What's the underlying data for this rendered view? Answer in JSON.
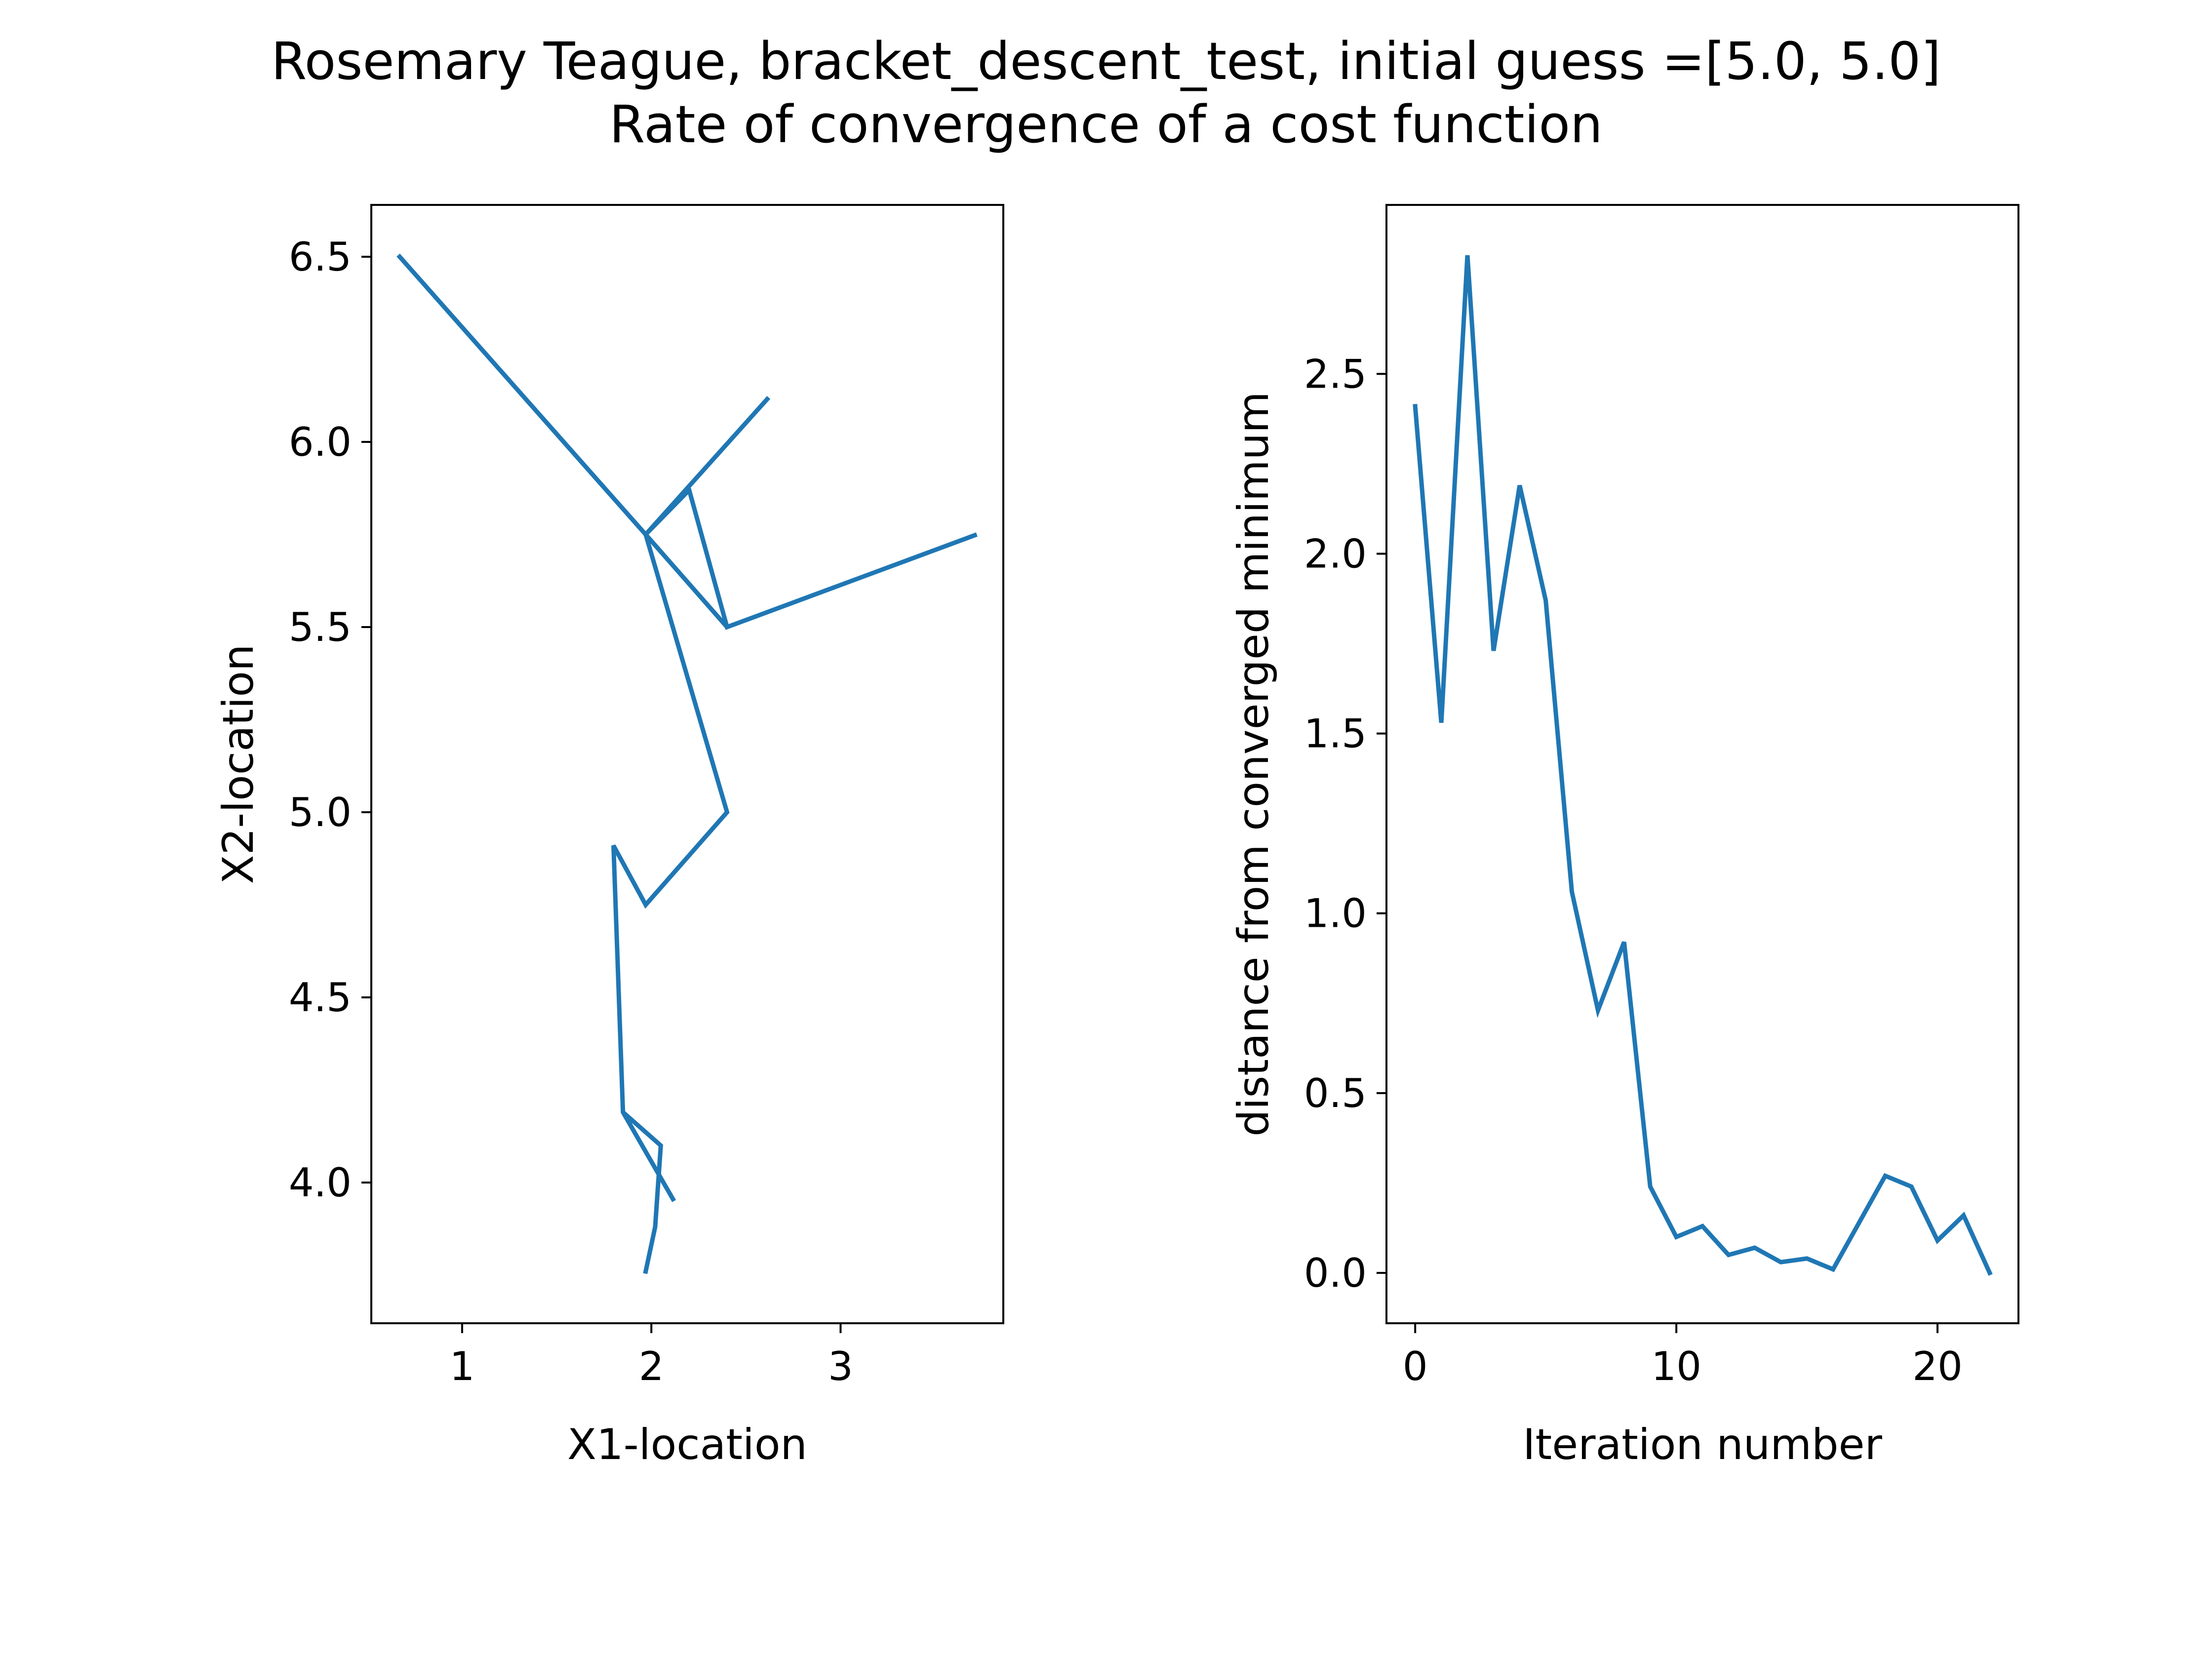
{
  "figure": {
    "title_line1": "Rosemary Teague, bracket_descent_test, initial guess =[5.0, 5.0]",
    "title_line2": "Rate of convergence of a cost function",
    "line_color": "#1f77b4"
  },
  "chart_data": [
    {
      "type": "line",
      "title": "",
      "xlabel": "X1-location",
      "ylabel": "X2-location",
      "xlim": [
        0.52,
        3.86
      ],
      "ylim": [
        3.62,
        6.64
      ],
      "xticks": [
        1,
        2,
        3
      ],
      "xtick_labels": [
        "1",
        "2",
        "3"
      ],
      "yticks": [
        4.0,
        4.5,
        5.0,
        5.5,
        6.0,
        6.5
      ],
      "ytick_labels": [
        "4.0",
        "4.5",
        "5.0",
        "5.5",
        "6.0",
        "6.5"
      ],
      "grid": false,
      "series": [
        {
          "x": [
            0.67,
            1.97,
            2.62,
            1.97,
            2.2,
            2.4,
            3.72,
            2.4,
            1.97,
            1.97,
            2.4,
            1.97,
            1.8,
            1.85,
            2.12,
            1.85,
            2.05,
            2.02,
            1.97
          ],
          "y": [
            6.5,
            5.75,
            6.12,
            5.75,
            5.87,
            5.5,
            5.75,
            5.5,
            5.75,
            5.75,
            5.0,
            4.75,
            4.91,
            4.19,
            3.95,
            4.19,
            4.1,
            3.88,
            3.76
          ]
        }
      ]
    },
    {
      "type": "line",
      "title": "",
      "xlabel": "Iteration number",
      "ylabel": "distance from converged minimum",
      "xlim": [
        -1.1,
        23.1
      ],
      "ylim": [
        -0.14,
        2.97
      ],
      "xticks": [
        0,
        10,
        20
      ],
      "xtick_labels": [
        "0",
        "10",
        "20"
      ],
      "yticks": [
        0.0,
        0.5,
        1.0,
        1.5,
        2.0,
        2.5
      ],
      "ytick_labels": [
        "0.0",
        "0.5",
        "1.0",
        "1.5",
        "2.0",
        "2.5"
      ],
      "grid": false,
      "series": [
        {
          "x": [
            0,
            1,
            2,
            3,
            4,
            5,
            6,
            7,
            8,
            9,
            10,
            11,
            12,
            13,
            14,
            15,
            16,
            17,
            18,
            19,
            20,
            21,
            22
          ],
          "y": [
            2.41,
            1.53,
            2.83,
            1.73,
            2.19,
            1.87,
            1.06,
            0.73,
            0.92,
            0.24,
            0.1,
            0.13,
            0.05,
            0.07,
            0.03,
            0.04,
            0.01,
            0.14,
            0.27,
            0.24,
            0.09,
            0.16,
            0.0
          ]
        }
      ]
    }
  ]
}
